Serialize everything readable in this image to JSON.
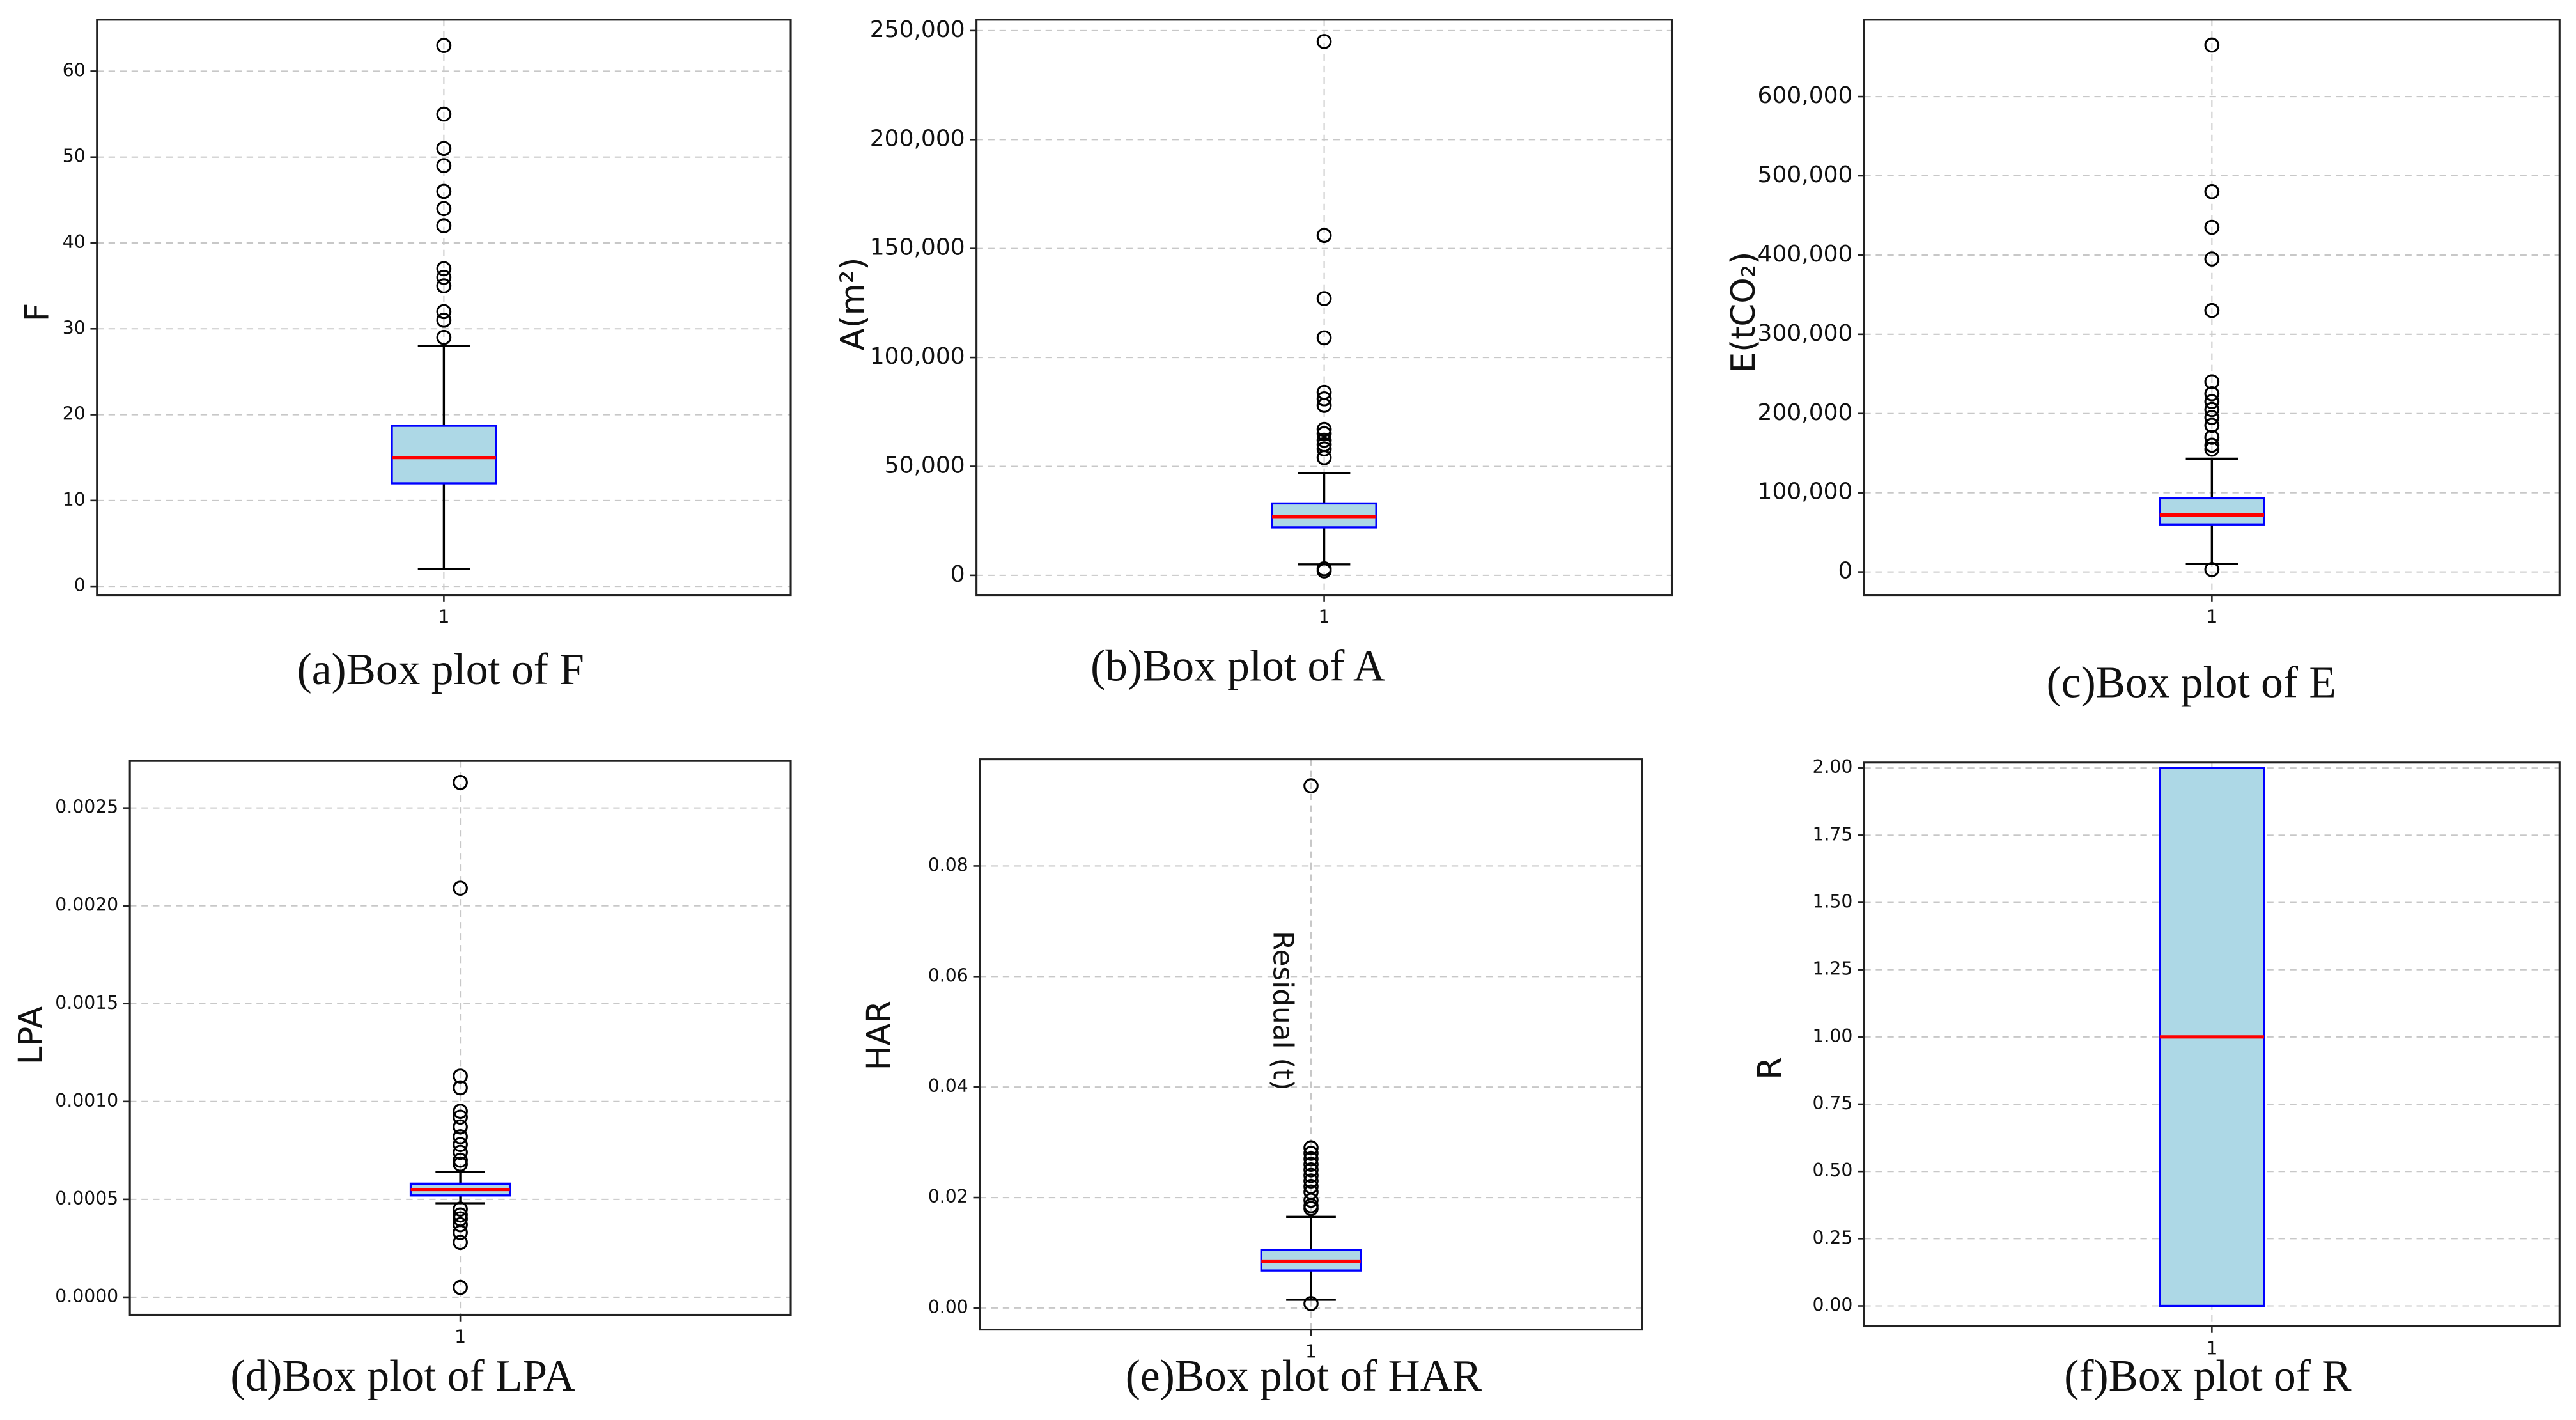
{
  "chart_data": [
    {
      "type": "box",
      "title": "(a)Box plot of F",
      "ylabel": "F",
      "categories": [
        "1"
      ],
      "whislo": 2,
      "q1": 12,
      "median": 15,
      "q3": 18.7,
      "whishi": 28,
      "outliers": [
        29,
        31,
        32,
        35,
        36,
        37,
        42,
        44,
        46,
        49,
        51,
        55,
        63
      ],
      "ylim": [
        -1,
        66
      ],
      "yticks": [
        0,
        10,
        20,
        30,
        40,
        50,
        60
      ],
      "grid": true,
      "box_color": "#add8e6",
      "edge_color": "#0000ff",
      "median_color": "#ff0000"
    },
    {
      "type": "box",
      "title": "(b)Box plot of A",
      "ylabel": "A(m²)",
      "categories": [
        "1"
      ],
      "whislo": 5000,
      "q1": 22000,
      "median": 27000,
      "q3": 33000,
      "whishi": 47000,
      "outliers": [
        2000,
        3000,
        54000,
        58000,
        60000,
        62000,
        65000,
        67000,
        78000,
        81000,
        84000,
        109000,
        127000,
        156000,
        245000
      ],
      "ylim": [
        -9000,
        255000
      ],
      "yticks": [
        0,
        {
          "value": 50000,
          "label": "50,000"
        },
        {
          "value": 100000,
          "label": "100,000"
        },
        {
          "value": 150000,
          "label": "150,000"
        },
        {
          "value": 200000,
          "label": "200,000"
        },
        {
          "value": 250000,
          "label": "250,000"
        }
      ],
      "grid": true,
      "box_color": "#add8e6",
      "edge_color": "#0000ff",
      "median_color": "#ff0000"
    },
    {
      "type": "box",
      "title": "(c)Box plot of E",
      "ylabel": "E(tCO₂)",
      "categories": [
        "1"
      ],
      "whislo": 10000,
      "q1": 60000,
      "median": 72000,
      "q3": 93000,
      "whishi": 143000,
      "outliers": [
        3000,
        155000,
        160000,
        170000,
        185000,
        195000,
        205000,
        215000,
        225000,
        240000,
        330000,
        395000,
        435000,
        480000,
        665000
      ],
      "ylim": [
        -29000,
        697000
      ],
      "yticks": [
        0,
        {
          "value": 100000,
          "label": "100,000"
        },
        {
          "value": 200000,
          "label": "200,000"
        },
        {
          "value": 300000,
          "label": "300,000"
        },
        {
          "value": 400000,
          "label": "400,000"
        },
        {
          "value": 500000,
          "label": "500,000"
        },
        {
          "value": 600000,
          "label": "600,000"
        }
      ],
      "grid": true,
      "box_color": "#add8e6",
      "edge_color": "#0000ff",
      "median_color": "#ff0000"
    },
    {
      "type": "box",
      "title": "(d)Box plot of LPA",
      "ylabel": "LPA",
      "categories": [
        "1"
      ],
      "whislo": 0.00048,
      "q1": 0.00052,
      "median": 0.00055,
      "q3": 0.00058,
      "whishi": 0.00064,
      "outliers": [
        0.00045,
        0.00042,
        0.0004,
        0.00037,
        0.00033,
        0.00028,
        5e-05,
        0.00068,
        0.0007,
        0.00074,
        0.00078,
        0.00082,
        0.00087,
        0.00092,
        0.00095,
        0.00107,
        0.00113,
        0.00209,
        0.00263
      ],
      "ylim": [
        -9e-05,
        0.00274
      ],
      "yticks": [
        {
          "value": 0,
          "label": "0.0000"
        },
        {
          "value": 0.0005,
          "label": "0.0005"
        },
        {
          "value": 0.001,
          "label": "0.0010"
        },
        {
          "value": 0.0015,
          "label": "0.0015"
        },
        {
          "value": 0.002,
          "label": "0.0020"
        },
        {
          "value": 0.0025,
          "label": "0.0025"
        }
      ],
      "grid": true,
      "box_color": "#add8e6",
      "edge_color": "#0000ff",
      "median_color": "#ff0000"
    },
    {
      "type": "box",
      "title": "(e)Box plot of HAR",
      "ylabel": "HAR",
      "annotation": "Residual (t)",
      "categories": [
        "1"
      ],
      "whislo": 0.0015,
      "q1": 0.0068,
      "median": 0.0085,
      "q3": 0.0105,
      "whishi": 0.0165,
      "outliers": [
        0.0008,
        0.018,
        0.0185,
        0.0195,
        0.021,
        0.022,
        0.023,
        0.024,
        0.025,
        0.026,
        0.027,
        0.028,
        0.029,
        0.0945
      ],
      "ylim": [
        -0.0039,
        0.0993
      ],
      "yticks": [
        {
          "value": 0,
          "label": "0.00"
        },
        {
          "value": 0.02,
          "label": "0.02"
        },
        {
          "value": 0.04,
          "label": "0.04"
        },
        {
          "value": 0.06,
          "label": "0.06"
        },
        {
          "value": 0.08,
          "label": "0.08"
        }
      ],
      "grid": true,
      "box_color": "#add8e6",
      "edge_color": "#0000ff",
      "median_color": "#ff0000"
    },
    {
      "type": "box",
      "title": "(f)Box plot of R",
      "ylabel": "R",
      "categories": [
        "1"
      ],
      "whislo": 0,
      "q1": 0,
      "median": 1,
      "q3": 2,
      "whishi": 2,
      "outliers": [],
      "ylim": [
        -0.076,
        2.02
      ],
      "yticks": [
        {
          "value": 0,
          "label": "0.00"
        },
        {
          "value": 0.25,
          "label": "0.25"
        },
        {
          "value": 0.5,
          "label": "0.50"
        },
        {
          "value": 0.75,
          "label": "0.75"
        },
        {
          "value": 1,
          "label": "1.00"
        },
        {
          "value": 1.25,
          "label": "1.25"
        },
        {
          "value": 1.5,
          "label": "1.50"
        },
        {
          "value": 1.75,
          "label": "1.75"
        },
        {
          "value": 2,
          "label": "2.00"
        }
      ],
      "grid": true,
      "box_color": "#add8e6",
      "edge_color": "#0000ff",
      "median_color": "#ff0000"
    }
  ]
}
